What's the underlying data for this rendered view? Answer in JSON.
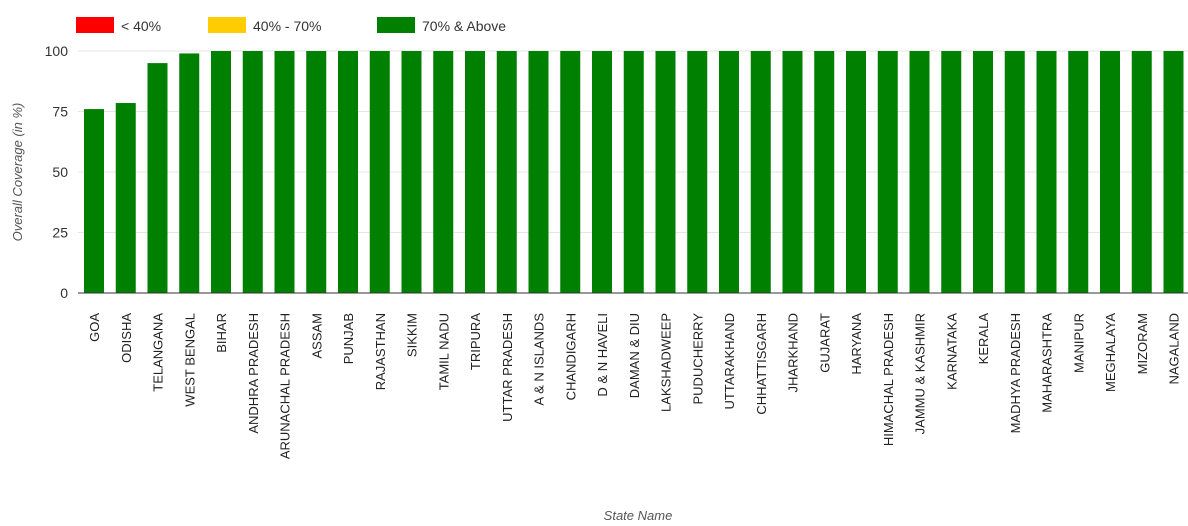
{
  "chart_data": {
    "type": "bar",
    "xlabel": "State Name",
    "ylabel": "Overall Coverage (in %)",
    "ylim": [
      0,
      100
    ],
    "yticks": [
      "0",
      "25",
      "50",
      "75",
      "100"
    ],
    "grid": true,
    "legend_position": "top-left",
    "legend": [
      {
        "label": "< 40%",
        "color": "#ff0000"
      },
      {
        "label": "40% - 70%",
        "color": "#ffcc00"
      },
      {
        "label": "70% & Above",
        "color": "#008000"
      }
    ],
    "bar_color": "#008000",
    "categories": [
      "GOA",
      "ODISHA",
      "TELANGANA",
      "WEST BENGAL",
      "BIHAR",
      "ANDHRA PRADESH",
      "ARUNACHAL PRADESH",
      "ASSAM",
      "PUNJAB",
      "RAJASTHAN",
      "SIKKIM",
      "TAMIL NADU",
      "TRIPURA",
      "UTTAR PRADESH",
      "A & N ISLANDS",
      "CHANDIGARH",
      "D & N HAVELI",
      "DAMAN & DIU",
      "LAKSHADWEEP",
      "PUDUCHERRY",
      "UTTARAKHAND",
      "CHHATTISGARH",
      "JHARKHAND",
      "GUJARAT",
      "HARYANA",
      "HIMACHAL PRADESH",
      "JAMMU & KASHMIR",
      "KARNATAKA",
      "KERALA",
      "MADHYA PRADESH",
      "MAHARASHTRA",
      "MANIPUR",
      "MEGHALAYA",
      "MIZORAM",
      "NAGALAND"
    ],
    "values": [
      76,
      78.5,
      95,
      99,
      100,
      100,
      100,
      100,
      100,
      100,
      100,
      100,
      100,
      100,
      100,
      100,
      100,
      100,
      100,
      100,
      100,
      100,
      100,
      100,
      100,
      100,
      100,
      100,
      100,
      100,
      100,
      100,
      100,
      100,
      100
    ]
  }
}
